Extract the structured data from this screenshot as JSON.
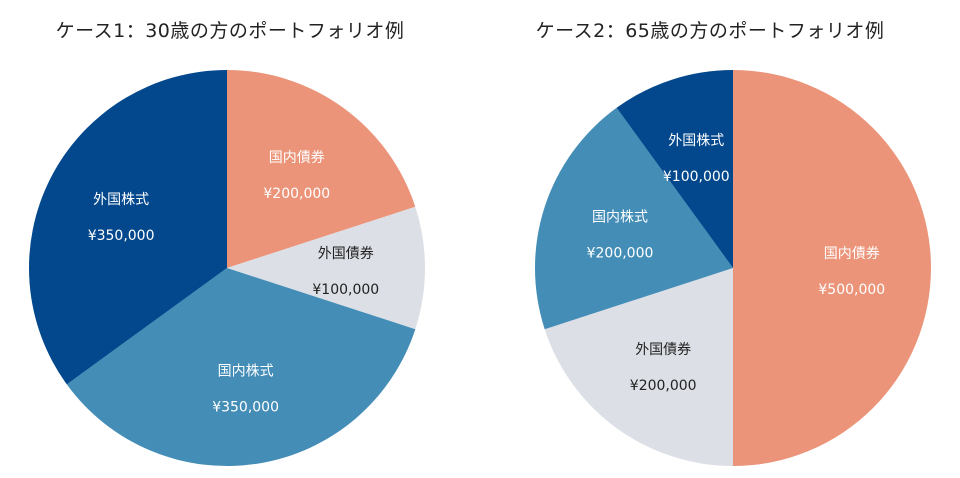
{
  "chart_data": [
    {
      "type": "pie",
      "title": "ケース1：30歳の方のポートフォリオ例",
      "slices": [
        {
          "label": "国内債券",
          "value": 200000,
          "value_label": "¥200,000",
          "color": "#eb9479",
          "text_color": "#ffffff"
        },
        {
          "label": "外国債券",
          "value": 100000,
          "value_label": "¥100,000",
          "color": "#dcdfe5",
          "text_color": "#222222"
        },
        {
          "label": "国内株式",
          "value": 350000,
          "value_label": "¥350,000",
          "color": "#438db7",
          "text_color": "#ffffff"
        },
        {
          "label": "外国株式",
          "value": 350000,
          "value_label": "¥350,000",
          "color": "#03478d",
          "text_color": "#ffffff"
        }
      ]
    },
    {
      "type": "pie",
      "title": "ケース2：65歳の方のポートフォリオ例",
      "slices": [
        {
          "label": "国内債券",
          "value": 500000,
          "value_label": "¥500,000",
          "color": "#eb9479",
          "text_color": "#ffffff"
        },
        {
          "label": "外国債券",
          "value": 200000,
          "value_label": "¥200,000",
          "color": "#dcdfe5",
          "text_color": "#222222"
        },
        {
          "label": "国内株式",
          "value": 200000,
          "value_label": "¥200,000",
          "color": "#438db7",
          "text_color": "#ffffff"
        },
        {
          "label": "外国株式",
          "value": 100000,
          "value_label": "¥100,000",
          "color": "#03478d",
          "text_color": "#ffffff"
        }
      ]
    }
  ]
}
